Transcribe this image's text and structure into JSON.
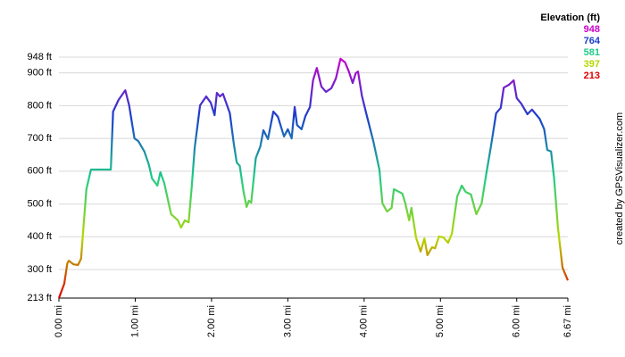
{
  "chart_data": {
    "type": "line",
    "legend_title": "Elevation (ft)",
    "credit": "created by GPSVisualizer.com",
    "color_scale": [
      {
        "value": 948,
        "color": "#cc00cc"
      },
      {
        "value": 764,
        "color": "#1a3fcc"
      },
      {
        "value": 581,
        "color": "#1fcc88"
      },
      {
        "value": 397,
        "color": "#b4d800"
      },
      {
        "value": 213,
        "color": "#dd0000"
      }
    ],
    "xlim": [
      0,
      6.67
    ],
    "ylim": [
      213,
      948
    ],
    "xticks": [
      {
        "value": 0,
        "label": "0.00 mi"
      },
      {
        "value": 1,
        "label": "1.00 mi"
      },
      {
        "value": 2,
        "label": "2.00 mi"
      },
      {
        "value": 3,
        "label": "3.00 mi"
      },
      {
        "value": 4,
        "label": "4.00 mi"
      },
      {
        "value": 5,
        "label": "5.00 mi"
      },
      {
        "value": 6,
        "label": "6.00 mi"
      },
      {
        "value": 6.67,
        "label": "6.67 mi"
      }
    ],
    "yticks": [
      {
        "value": 213,
        "label": "213 ft"
      },
      {
        "value": 300,
        "label": "300 ft"
      },
      {
        "value": 400,
        "label": "400 ft"
      },
      {
        "value": 500,
        "label": "500 ft"
      },
      {
        "value": 600,
        "label": "600 ft"
      },
      {
        "value": 700,
        "label": "700 ft"
      },
      {
        "value": 800,
        "label": "800 ft"
      },
      {
        "value": 900,
        "label": "900 ft"
      },
      {
        "value": 948,
        "label": "948 ft"
      }
    ],
    "grid": true,
    "x": [
      0,
      0.07,
      0.11,
      0.13,
      0.19,
      0.25,
      0.29,
      0.33,
      0.36,
      0.42,
      0.68,
      0.71,
      0.78,
      0.87,
      0.92,
      0.99,
      1.04,
      1.12,
      1.18,
      1.22,
      1.29,
      1.33,
      1.38,
      1.47,
      1.56,
      1.6,
      1.65,
      1.7,
      1.74,
      1.78,
      1.85,
      1.93,
      1.99,
      2.04,
      2.07,
      2.11,
      2.15,
      2.24,
      2.29,
      2.33,
      2.37,
      2.42,
      2.46,
      2.49,
      2.52,
      2.58,
      2.64,
      2.68,
      2.74,
      2.81,
      2.87,
      2.95,
      3.0,
      3.05,
      3.09,
      3.12,
      3.18,
      3.23,
      3.29,
      3.33,
      3.38,
      3.44,
      3.5,
      3.57,
      3.63,
      3.69,
      3.75,
      3.8,
      3.85,
      3.89,
      3.92,
      3.97,
      4.03,
      4.12,
      4.2,
      4.24,
      4.3,
      4.36,
      4.39,
      4.5,
      4.54,
      4.59,
      4.62,
      4.68,
      4.74,
      4.79,
      4.83,
      4.89,
      4.93,
      4.98,
      5.04,
      5.1,
      5.15,
      5.22,
      5.28,
      5.33,
      5.4,
      5.47,
      5.54,
      5.6,
      5.66,
      5.73,
      5.79,
      5.83,
      5.9,
      5.96,
      6.0,
      6.06,
      6.14,
      6.2,
      6.3,
      6.36,
      6.4,
      6.45,
      6.49,
      6.54,
      6.6,
      6.67
    ],
    "values": [
      213,
      257,
      319,
      327,
      316,
      314,
      333,
      455,
      545,
      605,
      605,
      782,
      817,
      847,
      801,
      700,
      692,
      660,
      619,
      578,
      556,
      597,
      564,
      469,
      450,
      428,
      450,
      444,
      551,
      673,
      801,
      828,
      809,
      771,
      839,
      828,
      836,
      777,
      687,
      627,
      616,
      537,
      491,
      510,
      504,
      640,
      676,
      725,
      698,
      782,
      766,
      706,
      728,
      700,
      796,
      741,
      728,
      768,
      796,
      877,
      915,
      858,
      842,
      853,
      883,
      943,
      932,
      904,
      869,
      899,
      904,
      831,
      774,
      692,
      605,
      502,
      477,
      488,
      545,
      532,
      502,
      450,
      488,
      398,
      355,
      395,
      344,
      368,
      365,
      401,
      398,
      382,
      409,
      523,
      556,
      537,
      529,
      469,
      502,
      591,
      673,
      777,
      793,
      855,
      864,
      877,
      823,
      806,
      774,
      788,
      760,
      728,
      665,
      660,
      578,
      428,
      306,
      267
    ]
  }
}
